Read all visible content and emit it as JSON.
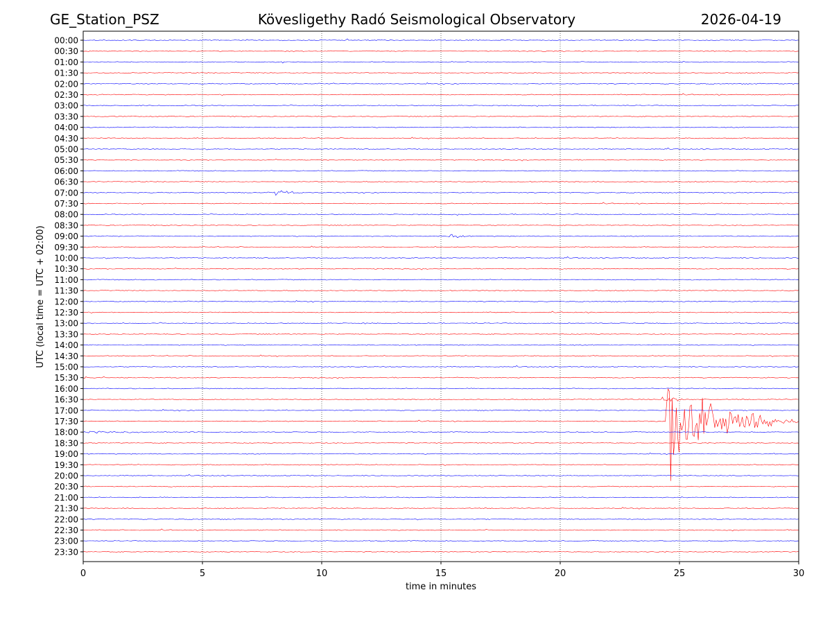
{
  "header": {
    "station": "GE_Station_PSZ",
    "observatory": "Kövesligethy Radó Seismological Observatory",
    "date": "2026-04-19"
  },
  "chart_data": {
    "type": "line",
    "title": "Kövesligethy Radó Seismological Observatory",
    "xlabel": "time in minutes",
    "ylabel": "UTC (local time = UTC + 02:00)",
    "xlim": [
      0,
      30
    ],
    "x_ticks": [
      0,
      5,
      10,
      15,
      20,
      25,
      30
    ],
    "grid": "vertical dotted at 5-minute ticks",
    "colors": {
      "even_rows": "#0000ff",
      "odd_rows": "#ff0000",
      "grid": "#000000"
    },
    "rows": [
      "00:00",
      "00:30",
      "01:00",
      "01:30",
      "02:00",
      "02:30",
      "03:00",
      "03:30",
      "04:00",
      "04:30",
      "05:00",
      "05:30",
      "06:00",
      "06:30",
      "07:00",
      "07:30",
      "08:00",
      "08:30",
      "09:00",
      "09:30",
      "10:00",
      "10:30",
      "11:00",
      "11:30",
      "12:00",
      "12:30",
      "13:00",
      "13:30",
      "14:00",
      "14:30",
      "15:00",
      "15:30",
      "16:00",
      "16:30",
      "17:00",
      "17:30",
      "18:00",
      "18:30",
      "19:00",
      "19:30",
      "20:00",
      "20:30",
      "21:00",
      "21:30",
      "22:00",
      "22:30",
      "23:00",
      "23:30"
    ],
    "events": [
      {
        "row": "05:30",
        "start_min": 25.8,
        "duration_min": 1.2,
        "amplitude_rows": 0.12
      },
      {
        "row": "07:00",
        "start_min": 8.0,
        "duration_min": 1.6,
        "amplitude_rows": 0.35
      },
      {
        "row": "09:00",
        "start_min": 15.3,
        "duration_min": 1.2,
        "amplitude_rows": 0.3
      },
      {
        "row": "13:00",
        "start_min": 11.7,
        "duration_min": 1.2,
        "amplitude_rows": 0.12
      },
      {
        "row": "15:00",
        "start_min": 29.7,
        "duration_min": 0.3,
        "amplitude_rows": 0.3
      },
      {
        "row": "15:30",
        "start_min": 0.0,
        "duration_min": 1.4,
        "amplitude_rows": 0.15
      },
      {
        "row": "16:30",
        "start_min": 24.2,
        "duration_min": 2.8,
        "amplitude_rows": 0.3
      },
      {
        "row": "17:30",
        "start_min": 24.4,
        "duration_min": 5.6,
        "amplitude_rows": 5.2
      },
      {
        "row": "18:00",
        "start_min": 0.0,
        "duration_min": 6.5,
        "amplitude_rows": 0.12
      },
      {
        "row": "20:00",
        "start_min": 16.4,
        "duration_min": 0.8,
        "amplitude_rows": 0.1
      }
    ]
  }
}
